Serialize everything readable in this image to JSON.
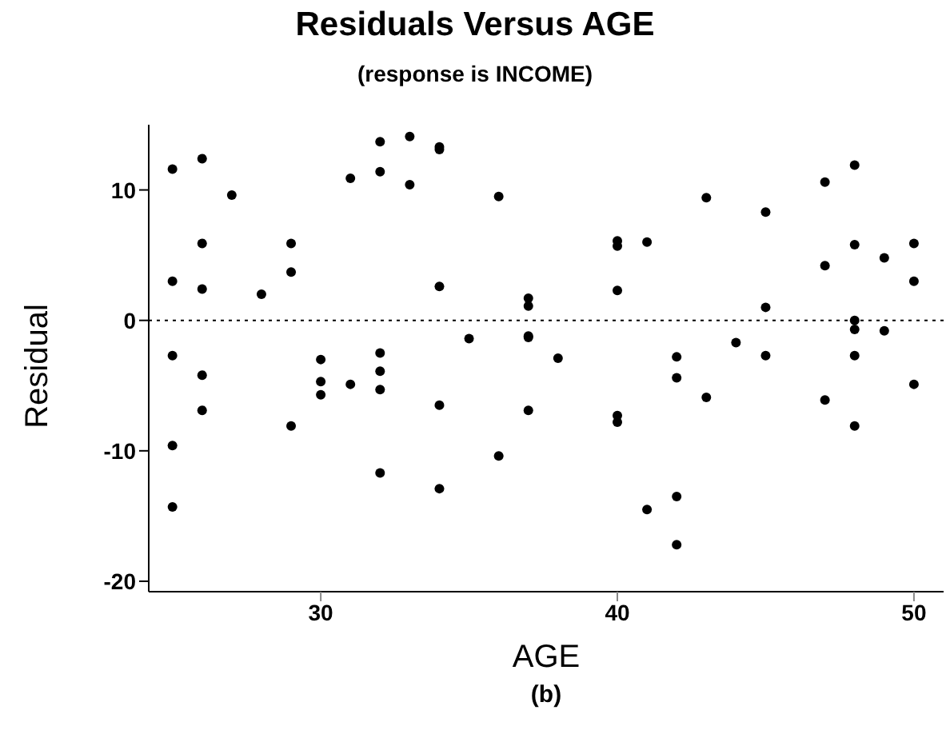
{
  "chart_data": {
    "type": "scatter",
    "title": "Residuals Versus AGE",
    "subtitle": "(response is INCOME)",
    "xlabel": "AGE",
    "ylabel": "Residual",
    "annotations": [
      "(b)"
    ],
    "x": [
      25,
      25,
      25,
      25,
      25,
      26,
      26,
      26,
      26,
      26,
      27,
      28,
      29,
      29,
      29,
      30,
      30,
      30,
      31,
      31,
      32,
      32,
      32,
      32,
      32,
      32,
      33,
      33,
      34,
      34,
      34,
      34,
      34,
      35,
      36,
      36,
      37,
      37,
      37,
      37,
      37,
      38,
      40,
      40,
      40,
      40,
      40,
      41,
      41,
      42,
      42,
      42,
      42,
      43,
      43,
      44,
      45,
      45,
      45,
      47,
      47,
      47,
      48,
      48,
      48,
      48,
      48,
      48,
      49,
      49,
      50,
      50,
      50
    ],
    "series": [
      {
        "color": "#000000",
        "values": [
          11.6,
          3.0,
          -2.7,
          -9.6,
          -14.3,
          12.4,
          5.9,
          2.4,
          -4.2,
          -6.9,
          9.6,
          2.0,
          5.9,
          3.7,
          -8.1,
          -3.0,
          -4.7,
          -5.7,
          10.9,
          -4.9,
          13.7,
          11.4,
          -2.5,
          -3.9,
          -5.3,
          -11.7,
          14.1,
          10.4,
          13.3,
          13.1,
          2.6,
          -6.5,
          -12.9,
          -1.4,
          9.5,
          -10.4,
          1.7,
          1.1,
          -1.2,
          -1.3,
          -6.9,
          -2.9,
          6.1,
          5.7,
          2.3,
          -7.3,
          -7.8,
          6.0,
          -14.5,
          -2.8,
          -4.4,
          -13.5,
          -17.2,
          9.4,
          -5.9,
          -1.7,
          8.3,
          1.0,
          -2.7,
          10.6,
          4.2,
          -6.1,
          11.9,
          5.8,
          0.0,
          -0.7,
          -2.7,
          -8.1,
          4.8,
          -0.8,
          5.9,
          3.0,
          -4.9
        ]
      }
    ],
    "xlim": [
      24.2,
      51
    ],
    "xticks": [
      30,
      40,
      50
    ],
    "ylim": [
      -20.8,
      15
    ],
    "yticks": [
      -20,
      -10,
      0,
      10
    ],
    "ref_lines": [
      {
        "axis": "y",
        "value": 0,
        "color": "#000000",
        "line_style": "dotted"
      }
    ],
    "marker": "circle",
    "grid": false
  }
}
